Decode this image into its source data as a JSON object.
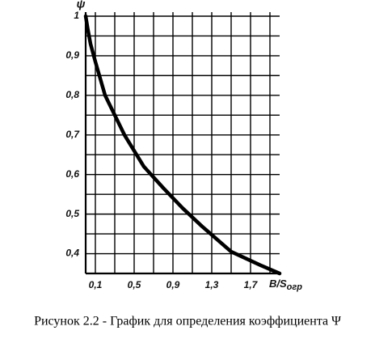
{
  "chart_data": {
    "type": "line",
    "y_label": "ψ",
    "x_label": "B/S",
    "x_label_sub": "огр",
    "caption": "Рисунок 2.2 - График для определения коэффициента Ψ",
    "x": [
      0,
      0.02,
      0.05,
      0.1,
      0.2,
      0.3,
      0.4,
      0.6,
      0.8,
      1.0,
      1.2,
      1.5,
      1.8,
      2.0
    ],
    "values": [
      1.0,
      0.97,
      0.93,
      0.885,
      0.8,
      0.75,
      0.7,
      0.62,
      0.566,
      0.515,
      0.469,
      0.405,
      0.371,
      0.35
    ],
    "color": "#000000",
    "xlim": [
      0,
      2.0
    ],
    "ylim": [
      0.35,
      1.0
    ],
    "xticks": [
      {
        "value": 0.1,
        "label": "0,1"
      },
      {
        "value": 0.5,
        "label": "0,5"
      },
      {
        "value": 0.9,
        "label": "0,9"
      },
      {
        "value": 1.3,
        "label": "1,3"
      },
      {
        "value": 1.7,
        "label": "1,7"
      }
    ],
    "yticks": [
      {
        "value": 0.4,
        "label": "0,4"
      },
      {
        "value": 0.5,
        "label": "0,5"
      },
      {
        "value": 0.6,
        "label": "0,6"
      },
      {
        "value": 0.7,
        "label": "0,7"
      },
      {
        "value": 0.8,
        "label": "0,8"
      },
      {
        "value": 0.9,
        "label": "0,9"
      },
      1
    ],
    "xgrid": [
      0.1,
      0.3,
      0.5,
      0.7,
      0.9,
      1.1,
      1.3,
      1.5,
      1.7,
      1.9
    ],
    "ygrid": [
      0.35,
      0.4,
      0.45,
      0.5,
      0.55,
      0.6,
      0.65,
      0.7,
      0.75,
      0.8,
      0.85,
      0.9,
      0.95,
      1.0
    ],
    "grid": true
  }
}
